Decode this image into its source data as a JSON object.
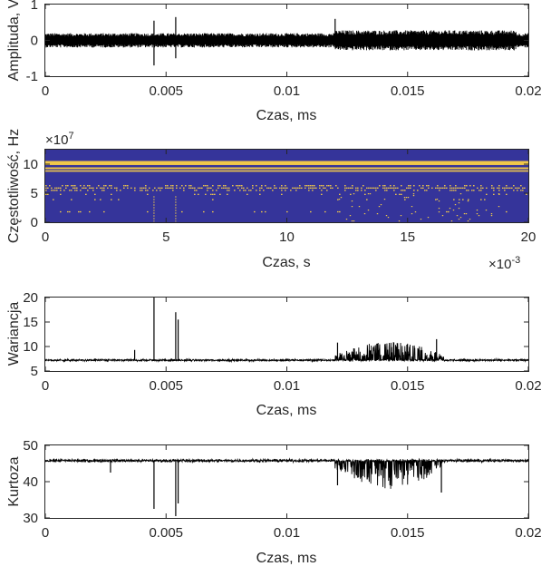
{
  "chart_data": [
    {
      "type": "line",
      "title": "",
      "xlabel": "Czas, ms",
      "ylabel": "Amplituda, V",
      "xlim": [
        0,
        0.02
      ],
      "ylim": [
        -1,
        1
      ],
      "xticks": [
        "0",
        "0.005",
        "0.01",
        "0.015",
        "0.02"
      ],
      "yticks": [
        "-1",
        "0",
        "1"
      ],
      "grid": false,
      "series": [
        {
          "description": "dense noise signal centred on 0",
          "baseline": 0,
          "noise_amplitude": 0.2,
          "burst_region": [
            0.012,
            0.0195
          ],
          "burst_amplitude": 0.28,
          "spikes": [
            {
              "x": 0.0045,
              "y": 0.55
            },
            {
              "x": 0.0045,
              "y": -0.7
            },
            {
              "x": 0.0054,
              "y": 0.65
            },
            {
              "x": 0.0054,
              "y": -0.5
            },
            {
              "x": 0.012,
              "y": 0.6
            }
          ]
        }
      ]
    },
    {
      "type": "heatmap",
      "title": "",
      "xlabel": "Czas, s",
      "ylabel": "Częstotliwość, Hz",
      "xlim": [
        0,
        20
      ],
      "ylim": [
        0,
        12.5
      ],
      "xticks": [
        "0",
        "5",
        "10",
        "15",
        "20"
      ],
      "yticks": [
        "0",
        "5",
        "10"
      ],
      "x_exponent": "×10",
      "x_exponent_power": "-3",
      "y_exponent": "×10",
      "y_exponent_power": "7",
      "background_color": "#35349a",
      "highlight_color": "#f0c84a",
      "bands": [
        {
          "y_from": 9.85,
          "y_to": 10.55
        },
        {
          "y_from": 9.15,
          "y_to": 9.45
        },
        {
          "y_from": 8.7,
          "y_to": 8.95
        }
      ],
      "dotted_bands": [
        {
          "y": 6.3,
          "density": 0.35
        },
        {
          "y": 5.9,
          "density": 0.55
        },
        {
          "y": 5.5,
          "density": 0.3
        },
        {
          "y": 4.8,
          "density": 0.12
        },
        {
          "y": 3.9,
          "density": 0.06
        },
        {
          "y": 1.8,
          "density": 0.1
        }
      ],
      "scatter_regions": [
        {
          "x_from": 12,
          "x_to": 19,
          "y_from": 0.3,
          "y_to": 5.0,
          "density": 0.04
        }
      ],
      "vertical_events": [
        4.5,
        5.4
      ]
    },
    {
      "type": "line",
      "title": "",
      "xlabel": "Czas, ms",
      "ylabel": "Wariancja",
      "xlim": [
        0,
        0.02
      ],
      "ylim": [
        5,
        20
      ],
      "xticks": [
        "0",
        "0.005",
        "0.01",
        "0.015",
        "0.02"
      ],
      "yticks": [
        "5",
        "10",
        "15",
        "20"
      ],
      "grid": false,
      "series": [
        {
          "baseline": 7.2,
          "noise_amplitude": 0.3,
          "burst_region": [
            0.012,
            0.0165
          ],
          "burst_peak": 11,
          "spikes": [
            {
              "x": 0.0037,
              "y": 9.3
            },
            {
              "x": 0.0045,
              "y": 20
            },
            {
              "x": 0.0054,
              "y": 17
            },
            {
              "x": 0.0055,
              "y": 15.5
            },
            {
              "x": 0.0121,
              "y": 10.8
            },
            {
              "x": 0.0162,
              "y": 11.5
            }
          ]
        }
      ]
    },
    {
      "type": "line",
      "title": "",
      "xlabel": "Czas, ms",
      "ylabel": "Kurtoza",
      "xlim": [
        0,
        0.02
      ],
      "ylim": [
        30,
        50
      ],
      "xticks": [
        "0",
        "0.005",
        "0.01",
        "0.015",
        "0.02"
      ],
      "yticks": [
        "30",
        "40",
        "50"
      ],
      "grid": false,
      "series": [
        {
          "baseline": 45.8,
          "noise_amplitude": 0.6,
          "burst_region": [
            0.012,
            0.0165
          ],
          "burst_min": 38,
          "spikes": [
            {
              "x": 0.0027,
              "y": 42.5
            },
            {
              "x": 0.0045,
              "y": 32.5
            },
            {
              "x": 0.0054,
              "y": 30.5
            },
            {
              "x": 0.0055,
              "y": 34
            },
            {
              "x": 0.0121,
              "y": 39
            },
            {
              "x": 0.0164,
              "y": 37
            }
          ]
        }
      ]
    }
  ]
}
